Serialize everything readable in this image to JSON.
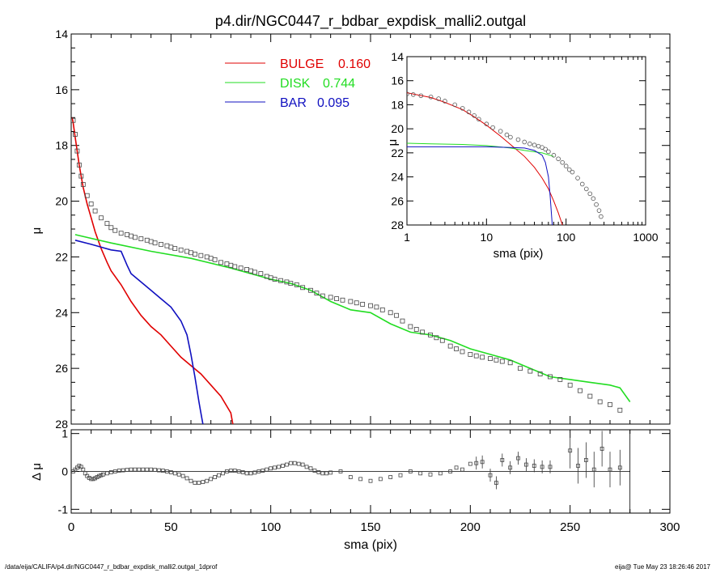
{
  "chart_data": [
    {
      "panel": "main",
      "type": "line",
      "title": "p4.dir/NGC0447_r_bdbar_expdisk_malli2.outgal",
      "xlabel": "",
      "ylabel": "μ",
      "xlim": [
        0,
        300
      ],
      "ylim": [
        28,
        14
      ],
      "y_inverted": true,
      "xticks": [],
      "yticks": [
        "14",
        "16",
        "18",
        "20",
        "22",
        "24",
        "26",
        "28"
      ],
      "legend_position": "top-center",
      "legend": [
        {
          "name": "BULGE",
          "value": "0.160",
          "color": "#e00000"
        },
        {
          "name": "DISK",
          "value": "0.744",
          "color": "#22dd22"
        },
        {
          "name": "BAR",
          "value": "0.095",
          "color": "#1010c0"
        }
      ],
      "series": [
        {
          "name": "BULGE",
          "color": "#e00000",
          "x": [
            0.5,
            1,
            2,
            3,
            4,
            5,
            6,
            8,
            10,
            12,
            15,
            18,
            20,
            25,
            30,
            35,
            40,
            45,
            50,
            55,
            60,
            65,
            70,
            75,
            80,
            81
          ],
          "y": [
            17.0,
            17.2,
            17.7,
            18.2,
            18.7,
            19.1,
            19.5,
            20.1,
            20.6,
            21.1,
            21.7,
            22.2,
            22.5,
            23.0,
            23.6,
            24.1,
            24.5,
            24.8,
            25.2,
            25.6,
            25.9,
            26.2,
            26.6,
            27.0,
            27.6,
            28.0
          ]
        },
        {
          "name": "DISK",
          "color": "#22dd22",
          "x": [
            2,
            20,
            40,
            60,
            80,
            100,
            110,
            120,
            125,
            130,
            140,
            150,
            160,
            170,
            180,
            190,
            200,
            210,
            220,
            230,
            240,
            250,
            260,
            270,
            275,
            280
          ],
          "y": [
            21.2,
            21.5,
            21.8,
            22.05,
            22.4,
            22.8,
            22.95,
            23.2,
            23.4,
            23.6,
            23.9,
            24.0,
            24.4,
            24.7,
            24.8,
            25.0,
            25.3,
            25.5,
            25.7,
            26.0,
            26.3,
            26.4,
            26.5,
            26.6,
            26.7,
            27.2
          ]
        },
        {
          "name": "BAR",
          "color": "#1010c0",
          "x": [
            2,
            10,
            20,
            25,
            28,
            30,
            35,
            40,
            45,
            50,
            55,
            58,
            60,
            62,
            64,
            65,
            66
          ],
          "y": [
            21.4,
            21.55,
            21.75,
            21.8,
            22.3,
            22.6,
            22.9,
            23.2,
            23.5,
            23.8,
            24.3,
            24.8,
            25.5,
            26.3,
            27.2,
            27.6,
            28.0
          ]
        },
        {
          "name": "observed",
          "type": "scatter",
          "marker": "square",
          "x": [
            1,
            2,
            3,
            4,
            5,
            6,
            8,
            10,
            12,
            15,
            18,
            20,
            22,
            25,
            28,
            30,
            32,
            35,
            38,
            40,
            42,
            45,
            48,
            50,
            52,
            55,
            58,
            60,
            62,
            65,
            68,
            70,
            72,
            75,
            78,
            80,
            82,
            85,
            88,
            90,
            92,
            95,
            98,
            100,
            102,
            105,
            108,
            110,
            113,
            116,
            120,
            123,
            126,
            130,
            133,
            136,
            140,
            143,
            146,
            150,
            153,
            156,
            160,
            163,
            166,
            170,
            173,
            176,
            180,
            183,
            186,
            190,
            193,
            196,
            200,
            203,
            206,
            210,
            213,
            216,
            220,
            225,
            230,
            235,
            240,
            245,
            250,
            255,
            260,
            265,
            270,
            275
          ],
          "y": [
            17.1,
            17.6,
            18.2,
            18.7,
            19.1,
            19.4,
            19.8,
            20.1,
            20.35,
            20.6,
            20.8,
            20.95,
            21.05,
            21.15,
            21.2,
            21.25,
            21.3,
            21.35,
            21.4,
            21.45,
            21.5,
            21.55,
            21.6,
            21.65,
            21.7,
            21.75,
            21.8,
            21.85,
            21.9,
            21.95,
            22.0,
            22.05,
            22.1,
            22.2,
            22.25,
            22.3,
            22.35,
            22.4,
            22.45,
            22.5,
            22.55,
            22.6,
            22.7,
            22.75,
            22.8,
            22.85,
            22.9,
            22.95,
            23.0,
            23.1,
            23.2,
            23.3,
            23.4,
            23.45,
            23.5,
            23.55,
            23.6,
            23.65,
            23.7,
            23.75,
            23.8,
            23.9,
            24.0,
            24.1,
            24.3,
            24.5,
            24.6,
            24.7,
            24.8,
            24.9,
            25.0,
            25.2,
            25.3,
            25.4,
            25.5,
            25.55,
            25.6,
            25.65,
            25.7,
            25.75,
            25.8,
            26.0,
            26.1,
            26.2,
            26.3,
            26.4,
            26.6,
            26.8,
            27.0,
            27.2,
            27.3,
            27.5
          ]
        }
      ]
    },
    {
      "panel": "residual",
      "type": "scatter",
      "xlabel": "sma (pix)",
      "ylabel": "Δ μ",
      "xlim": [
        0,
        300
      ],
      "ylim": [
        -1.1,
        1.1
      ],
      "xticks": [
        "0",
        "50",
        "100",
        "150",
        "200",
        "250",
        "300"
      ],
      "yticks": [
        "-1",
        "0",
        "1"
      ],
      "reference_line": 0,
      "vertical_line_x": 280,
      "x": [
        1,
        2,
        3,
        4,
        5,
        6,
        7,
        8,
        9,
        10,
        11,
        12,
        13,
        14,
        15,
        16,
        18,
        20,
        22,
        24,
        26,
        28,
        30,
        32,
        34,
        36,
        38,
        40,
        42,
        44,
        46,
        48,
        50,
        52,
        54,
        56,
        58,
        60,
        62,
        64,
        66,
        68,
        70,
        72,
        74,
        76,
        78,
        80,
        82,
        84,
        86,
        88,
        90,
        92,
        94,
        96,
        98,
        100,
        102,
        104,
        106,
        108,
        110,
        112,
        114,
        116,
        118,
        120,
        122,
        124,
        126,
        128,
        130,
        135,
        140,
        145,
        150,
        155,
        160,
        165,
        170,
        175,
        180,
        185,
        190,
        193,
        196,
        200,
        203,
        206,
        210,
        213,
        216,
        220,
        224,
        228,
        232,
        236,
        240,
        250,
        254,
        258,
        262,
        266,
        270,
        275
      ],
      "y": [
        0.0,
        0.05,
        0.1,
        0.15,
        0.12,
        0.05,
        -0.05,
        -0.12,
        -0.17,
        -0.2,
        -0.2,
        -0.18,
        -0.15,
        -0.12,
        -0.1,
        -0.08,
        -0.05,
        -0.02,
        0.0,
        0.02,
        0.03,
        0.04,
        0.05,
        0.05,
        0.05,
        0.05,
        0.05,
        0.05,
        0.04,
        0.03,
        0.02,
        0.0,
        -0.02,
        -0.05,
        -0.08,
        -0.12,
        -0.18,
        -0.25,
        -0.3,
        -0.3,
        -0.28,
        -0.25,
        -0.2,
        -0.15,
        -0.1,
        -0.05,
        0.0,
        0.02,
        0.02,
        0.0,
        -0.02,
        -0.05,
        -0.05,
        -0.03,
        0.0,
        0.02,
        0.05,
        0.08,
        0.1,
        0.12,
        0.15,
        0.18,
        0.22,
        0.22,
        0.2,
        0.18,
        0.12,
        0.08,
        0.02,
        -0.02,
        -0.05,
        -0.05,
        -0.03,
        0.0,
        -0.15,
        -0.2,
        -0.25,
        -0.2,
        -0.15,
        -0.1,
        0.0,
        -0.05,
        -0.08,
        -0.05,
        0.0,
        0.1,
        0.05,
        0.2,
        0.22,
        0.25,
        -0.1,
        -0.3,
        0.3,
        0.1,
        0.35,
        0.18,
        0.15,
        0.12,
        0.12,
        0.55,
        0.15,
        0.3,
        0.05,
        0.6,
        0.05,
        0.1
      ]
    },
    {
      "panel": "inset",
      "type": "line",
      "xlabel": "sma (pix)",
      "ylabel": "μ",
      "xscale": "log",
      "xlim": [
        1,
        1000
      ],
      "ylim": [
        28,
        14
      ],
      "y_inverted": true,
      "xticks": [
        "1",
        "10",
        "100",
        "1000"
      ],
      "yticks": [
        "14",
        "16",
        "18",
        "20",
        "22",
        "24",
        "26",
        "28"
      ],
      "series": [
        {
          "name": "BULGE",
          "color": "#e00000",
          "x": [
            1,
            2,
            3,
            5,
            7,
            10,
            15,
            20,
            30,
            40,
            50,
            60,
            70,
            80,
            90
          ],
          "y": [
            17.0,
            17.4,
            17.8,
            18.4,
            19.0,
            19.7,
            20.6,
            21.3,
            22.3,
            23.2,
            24.1,
            25.0,
            26.0,
            27.0,
            28.0
          ]
        },
        {
          "name": "DISK",
          "color": "#22dd22",
          "x": [
            1,
            2,
            5,
            10,
            20,
            30,
            50,
            70
          ],
          "y": [
            21.2,
            21.25,
            21.3,
            21.4,
            21.6,
            21.8,
            22.0,
            22.3
          ]
        },
        {
          "name": "BAR",
          "color": "#1010c0",
          "x": [
            1,
            5,
            10,
            20,
            30,
            40,
            50,
            55,
            60,
            63,
            65,
            67
          ],
          "y": [
            21.5,
            21.5,
            21.5,
            21.55,
            21.6,
            21.8,
            22.2,
            22.8,
            24.0,
            25.5,
            26.8,
            28.0
          ]
        },
        {
          "name": "observed",
          "type": "scatter",
          "marker": "circle",
          "x": [
            1,
            1.2,
            1.5,
            2,
            2.5,
            3,
            4,
            5,
            6,
            7,
            8,
            10,
            12,
            15,
            18,
            20,
            25,
            30,
            35,
            40,
            45,
            50,
            55,
            60,
            70,
            80,
            90,
            100,
            110,
            120,
            140,
            160,
            180,
            200,
            220,
            240,
            260,
            275
          ],
          "y": [
            17.1,
            17.15,
            17.25,
            17.35,
            17.5,
            17.7,
            18.0,
            18.3,
            18.6,
            18.9,
            19.2,
            19.6,
            19.9,
            20.2,
            20.5,
            20.7,
            20.9,
            21.1,
            21.25,
            21.35,
            21.45,
            21.55,
            21.7,
            21.9,
            22.2,
            22.5,
            22.8,
            23.1,
            23.4,
            23.6,
            24.1,
            24.6,
            25.0,
            25.4,
            25.8,
            26.3,
            26.8,
            27.3
          ]
        }
      ]
    }
  ],
  "footer": {
    "left": "/data/eija/CALIFA/p4.dir/NGC0447_r_bdbar_expdisk_malli2.outgal_1dprof",
    "right": "eija@  Tue May 23 18:26:46 2017"
  }
}
